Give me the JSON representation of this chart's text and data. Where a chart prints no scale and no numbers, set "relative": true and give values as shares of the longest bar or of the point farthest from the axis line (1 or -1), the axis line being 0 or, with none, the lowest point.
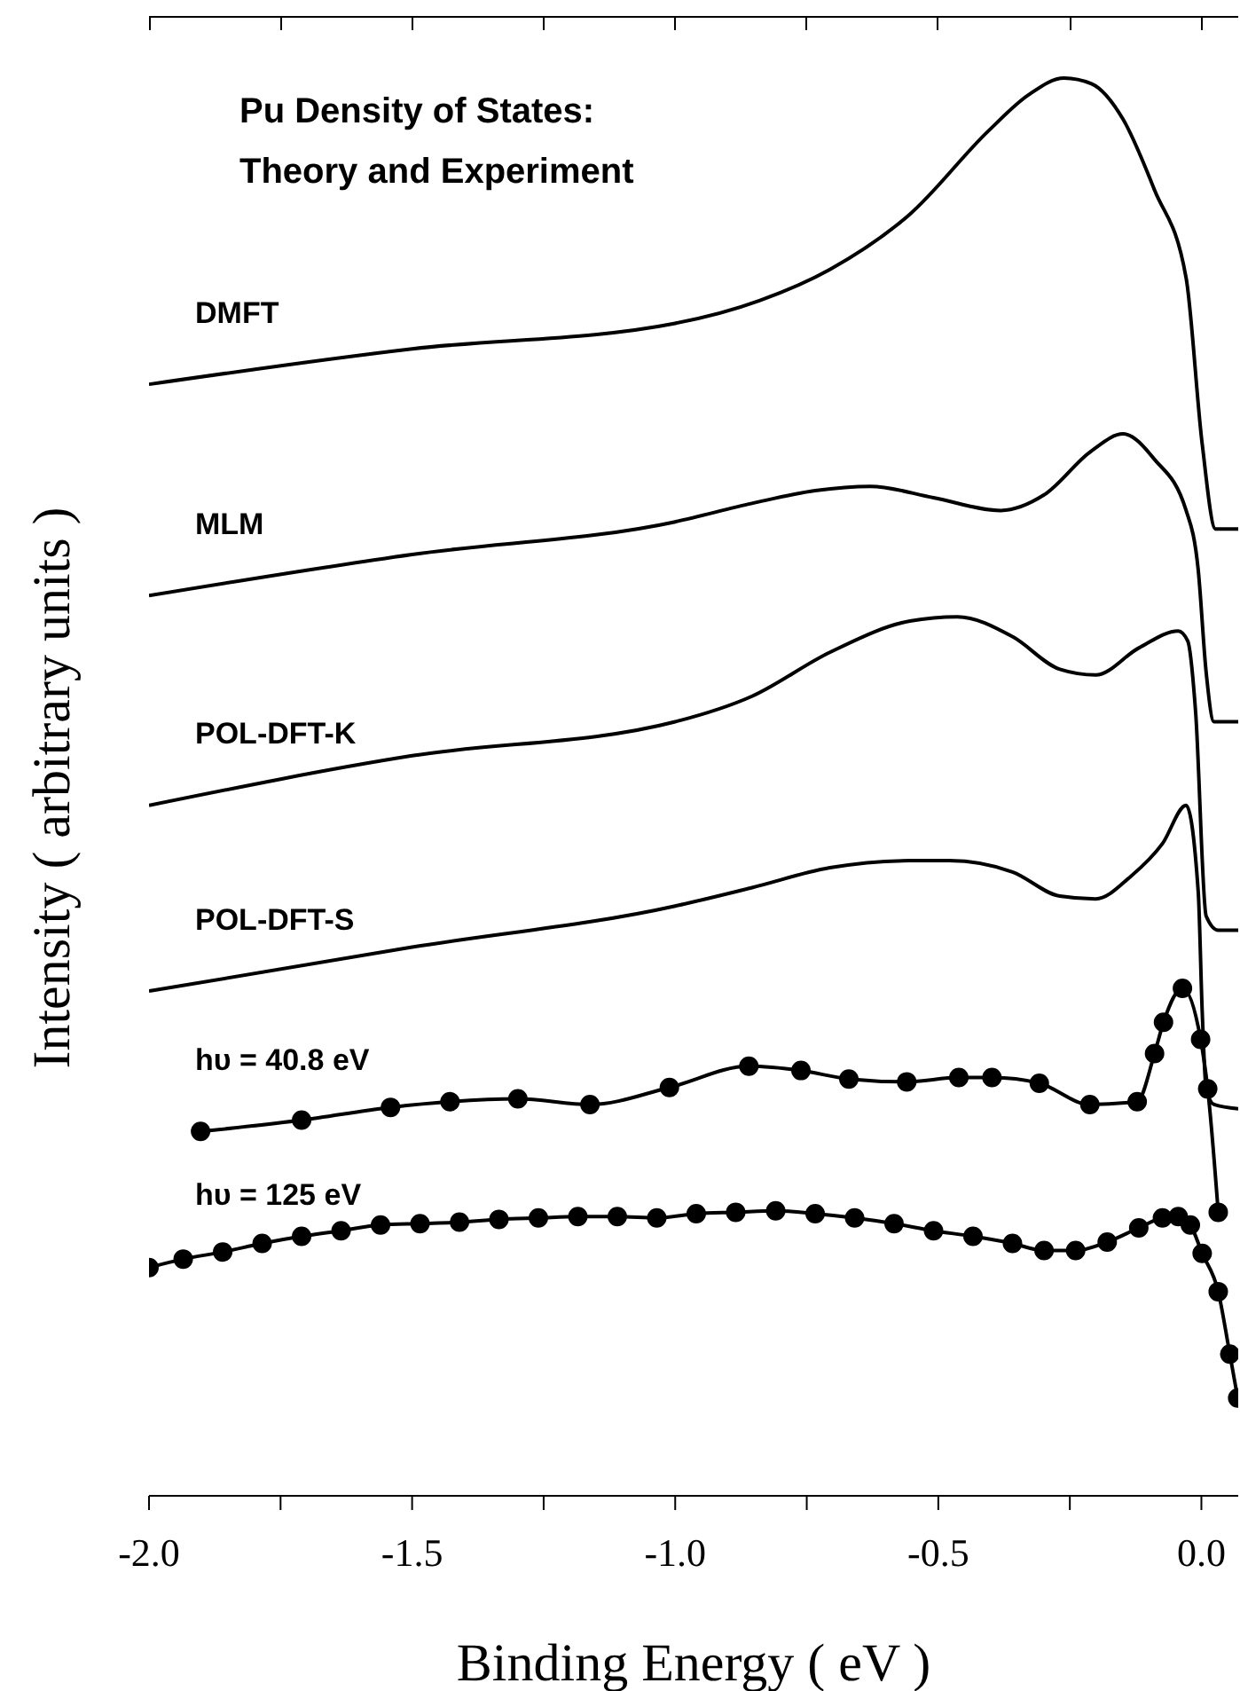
{
  "chart_data": {
    "type": "line",
    "title": "Pu Density of States:\nTheory and Experiment",
    "xlabel": "Binding Energy ( eV )",
    "ylabel": "Intensity ( arbitrary units )",
    "relative": true,
    "xlim": [
      -2.0,
      0.07
    ],
    "xticks": [
      {
        "value": -2,
        "label": "-2.0"
      },
      {
        "value": -1.75,
        "label": null
      },
      {
        "value": -1.5,
        "label": "-1.5"
      },
      {
        "value": -1.25,
        "label": null
      },
      {
        "value": -1,
        "label": "-1.0"
      },
      {
        "value": -0.75,
        "label": null
      },
      {
        "value": -0.5,
        "label": "-0.5"
      },
      {
        "value": -0.25,
        "label": null
      },
      {
        "value": 0,
        "label": "0.0"
      }
    ],
    "series": [
      {
        "name": "DMFT",
        "color": "#000000",
        "marker": "none",
        "x": [
          -2.0,
          -1.5,
          -1.0,
          -0.84,
          -0.706,
          -0.554,
          -0.404,
          -0.329,
          -0.261,
          -0.209,
          -0.149,
          -0.089,
          -0.029,
          0.0015,
          0.027,
          0.07
        ],
        "values": [
          0.784,
          0.809,
          0.827,
          0.843,
          0.865,
          0.904,
          0.963,
          0.988,
          1.0,
          0.996,
          0.971,
          0.921,
          0.859,
          0.742,
          0.682,
          0.682
        ]
      },
      {
        "name": "MLM",
        "color": "#000000",
        "marker": "none",
        "x": [
          -2.0,
          -1.5,
          -1.0,
          -0.854,
          -0.734,
          -0.629,
          -0.509,
          -0.381,
          -0.299,
          -0.209,
          -0.149,
          -0.089,
          -0.029,
          -0.006,
          0.009,
          0.024,
          0.07
        ],
        "values": [
          0.635,
          0.664,
          0.687,
          0.7,
          0.709,
          0.712,
          0.704,
          0.695,
          0.706,
          0.737,
          0.749,
          0.731,
          0.695,
          0.653,
          0.581,
          0.546,
          0.546
        ]
      },
      {
        "name": "POL-DFT-K",
        "color": "#000000",
        "marker": "none",
        "x": [
          -2.0,
          -1.5,
          -1.0,
          -0.854,
          -0.706,
          -0.554,
          -0.464,
          -0.359,
          -0.269,
          -0.201,
          -0.119,
          -0.044,
          -0.026,
          -0.011,
          0.009,
          0.032,
          0.07
        ],
        "values": [
          0.487,
          0.522,
          0.546,
          0.564,
          0.595,
          0.617,
          0.62,
          0.606,
          0.583,
          0.579,
          0.598,
          0.61,
          0.603,
          0.553,
          0.409,
          0.399,
          0.399
        ]
      },
      {
        "name": "POL-DFT-S",
        "color": "#000000",
        "marker": "none",
        "x": [
          -2.0,
          -1.5,
          -1.0,
          -0.854,
          -0.706,
          -0.554,
          -0.479,
          -0.359,
          -0.269,
          -0.201,
          -0.134,
          -0.074,
          -0.029,
          -0.006,
          0.0015,
          0.009,
          0.024,
          0.07
        ],
        "values": [
          0.356,
          0.387,
          0.416,
          0.429,
          0.443,
          0.448,
          0.448,
          0.44,
          0.423,
          0.421,
          0.437,
          0.46,
          0.487,
          0.426,
          0.342,
          0.287,
          0.276,
          0.273
        ]
      },
      {
        "name": "hυ = 40.8 eV",
        "color": "#000000",
        "marker": "circle",
        "x": [
          -1.902,
          -1.71,
          -1.541,
          -1.428,
          -1.299,
          -1.162,
          -1.011,
          -0.86,
          -0.761,
          -0.67,
          -0.56,
          -0.461,
          -0.398,
          -0.308,
          -0.212,
          -0.122,
          -0.089,
          -0.072,
          -0.036,
          -0.0015,
          0.012,
          0.032
        ],
        "values": [
          0.257,
          0.265,
          0.274,
          0.278,
          0.28,
          0.276,
          0.288,
          0.303,
          0.3,
          0.294,
          0.292,
          0.295,
          0.295,
          0.291,
          0.276,
          0.278,
          0.312,
          0.334,
          0.358,
          0.322,
          0.287,
          0.2
        ]
      },
      {
        "name": "hυ = 125 eV",
        "color": "#000000",
        "marker": "circle",
        "x": [
          -2.0,
          -1.935,
          -1.86,
          -1.785,
          -1.71,
          -1.635,
          -1.56,
          -1.485,
          -1.41,
          -1.335,
          -1.26,
          -1.185,
          -1.11,
          -1.035,
          -0.96,
          -0.885,
          -0.809,
          -0.734,
          -0.659,
          -0.584,
          -0.509,
          -0.434,
          -0.359,
          -0.299,
          -0.239,
          -0.179,
          -0.119,
          -0.074,
          -0.044,
          -0.021,
          0.0015,
          0.032,
          0.054,
          0.069
        ],
        "values": [
          0.161,
          0.167,
          0.172,
          0.178,
          0.183,
          0.187,
          0.191,
          0.192,
          0.193,
          0.195,
          0.196,
          0.197,
          0.197,
          0.196,
          0.199,
          0.2,
          0.201,
          0.199,
          0.196,
          0.192,
          0.187,
          0.183,
          0.178,
          0.173,
          0.173,
          0.179,
          0.189,
          0.196,
          0.197,
          0.191,
          0.171,
          0.144,
          0.1,
          0.069
        ]
      }
    ]
  }
}
